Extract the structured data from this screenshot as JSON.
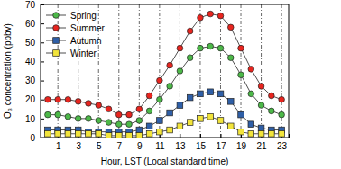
{
  "chart_data": {
    "type": "line",
    "x_label": "Hour, LST (Local standard time)",
    "y_label": "O₃ concentration (ppbv)",
    "x": [
      0,
      1,
      2,
      3,
      4,
      5,
      6,
      7,
      8,
      9,
      10,
      11,
      12,
      13,
      14,
      15,
      16,
      17,
      18,
      19,
      20,
      21,
      22,
      23
    ],
    "series": [
      {
        "name": "Spring",
        "color": "#4cb848",
        "marker": "circle",
        "values": [
          12,
          12,
          11,
          10,
          10,
          9,
          8,
          7,
          7,
          9,
          14,
          20,
          27,
          35,
          42,
          47,
          48,
          47,
          42,
          33,
          23,
          17,
          14,
          12
        ]
      },
      {
        "name": "Summer",
        "color": "#e8251f",
        "marker": "circle",
        "values": [
          20,
          20,
          20,
          19,
          18,
          17,
          15,
          12,
          12,
          15,
          22,
          30,
          38,
          47,
          56,
          63,
          65,
          64,
          58,
          47,
          36,
          27,
          22,
          20
        ]
      },
      {
        "name": "Autumn",
        "color": "#2f5fa7",
        "marker": "square",
        "values": [
          4,
          4,
          4,
          4,
          3,
          3,
          3,
          3,
          3,
          4,
          6,
          9,
          13,
          17,
          21,
          23,
          24,
          23,
          19,
          12,
          7,
          5,
          4,
          4
        ]
      },
      {
        "name": "Winter",
        "color": "#f2e43b",
        "marker": "square",
        "values": [
          2,
          2,
          2,
          2,
          2,
          2,
          1,
          1,
          1,
          1,
          2,
          3,
          4,
          6,
          8,
          10,
          11,
          9,
          6,
          3,
          2,
          2,
          2,
          2
        ]
      }
    ],
    "xlim": [
      -0.7,
      23.7
    ],
    "xticks": [
      1,
      3,
      5,
      7,
      9,
      11,
      13,
      15,
      17,
      19,
      21,
      23
    ],
    "ylim": [
      0,
      70
    ],
    "yticks": [
      0,
      10,
      20,
      30,
      40,
      50,
      60,
      70
    ],
    "grid": true,
    "legend": "upper left"
  }
}
